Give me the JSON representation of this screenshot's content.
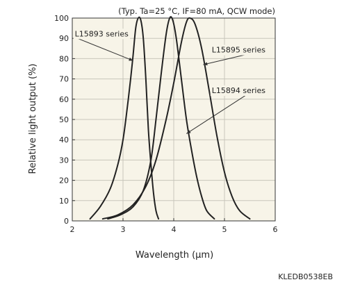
{
  "chart_data": {
    "type": "line",
    "title": "",
    "condition_note": "(Typ. Ta=25 °C, IF=80 mA, QCW mode)",
    "xlabel": "Wavelength (μm)",
    "ylabel": "Relative light output (%)",
    "xlim": [
      2,
      6
    ],
    "ylim": [
      0,
      100
    ],
    "x_ticks": [
      "2",
      "3",
      "4",
      "5",
      "6"
    ],
    "y_ticks": [
      "0",
      "10",
      "20",
      "30",
      "40",
      "50",
      "60",
      "70",
      "80",
      "90",
      "100"
    ],
    "grid": true,
    "plot_background": "#f7f4e8",
    "line_color": "#222222",
    "series": [
      {
        "name": "L15893 series",
        "points": [
          [
            2.35,
            1
          ],
          [
            2.55,
            7
          ],
          [
            2.75,
            16
          ],
          [
            2.9,
            28
          ],
          [
            3.0,
            40
          ],
          [
            3.08,
            55
          ],
          [
            3.15,
            70
          ],
          [
            3.2,
            82
          ],
          [
            3.25,
            95
          ],
          [
            3.3,
            100
          ],
          [
            3.35,
            99
          ],
          [
            3.4,
            90
          ],
          [
            3.45,
            70
          ],
          [
            3.5,
            45
          ],
          [
            3.55,
            28
          ],
          [
            3.6,
            14
          ],
          [
            3.65,
            5
          ],
          [
            3.7,
            1
          ]
        ]
      },
      {
        "name": "L15895 series",
        "points": [
          [
            2.7,
            1
          ],
          [
            2.95,
            3
          ],
          [
            3.2,
            7
          ],
          [
            3.4,
            15
          ],
          [
            3.55,
            30
          ],
          [
            3.65,
            50
          ],
          [
            3.75,
            72
          ],
          [
            3.85,
            92
          ],
          [
            3.92,
            100
          ],
          [
            3.98,
            99
          ],
          [
            4.05,
            90
          ],
          [
            4.15,
            70
          ],
          [
            4.25,
            50
          ],
          [
            4.35,
            35
          ],
          [
            4.45,
            22
          ],
          [
            4.55,
            12
          ],
          [
            4.65,
            5
          ],
          [
            4.8,
            1
          ]
        ]
      },
      {
        "name": "L15894 series",
        "points": [
          [
            2.6,
            1
          ],
          [
            2.9,
            3
          ],
          [
            3.2,
            8
          ],
          [
            3.45,
            17
          ],
          [
            3.65,
            30
          ],
          [
            3.85,
            50
          ],
          [
            4.0,
            68
          ],
          [
            4.15,
            88
          ],
          [
            4.25,
            98
          ],
          [
            4.32,
            100
          ],
          [
            4.42,
            97
          ],
          [
            4.55,
            85
          ],
          [
            4.7,
            64
          ],
          [
            4.85,
            42
          ],
          [
            5.0,
            24
          ],
          [
            5.15,
            12
          ],
          [
            5.3,
            5
          ],
          [
            5.5,
            1
          ]
        ]
      }
    ],
    "annotations": [
      {
        "text": "L15893 series",
        "series": "L15893 series",
        "label_x": 2.05,
        "label_y": 91,
        "arrow_to": [
          3.2,
          79
        ]
      },
      {
        "text": "L15895 series",
        "series": "L15895 series",
        "label_x": 4.75,
        "label_y": 83,
        "arrow_to": [
          4.58,
          77
        ]
      },
      {
        "text": "L15894 series",
        "series": "L15894 series",
        "label_x": 4.75,
        "label_y": 63,
        "arrow_to": [
          4.25,
          43
        ]
      }
    ],
    "figure_code": "KLEDB0538EB"
  }
}
